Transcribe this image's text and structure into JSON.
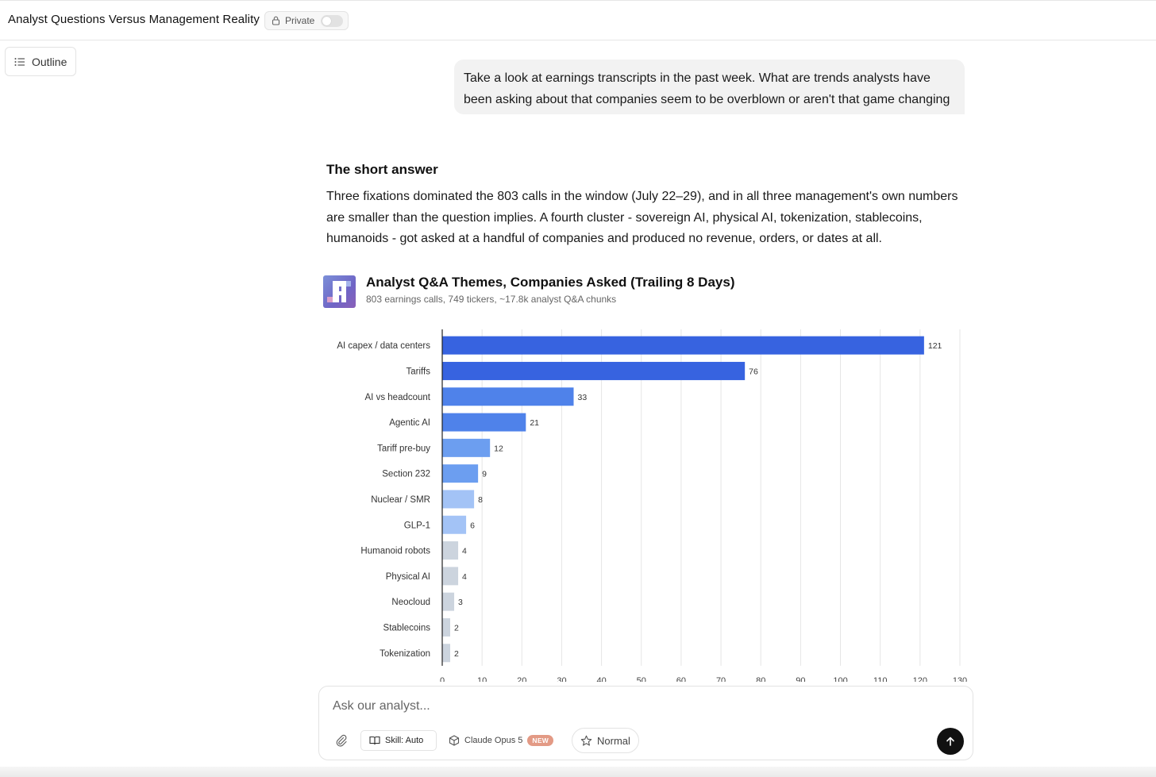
{
  "header": {
    "title": "Analyst Questions Versus Management Reality",
    "private_label": "Private"
  },
  "sidebar": {
    "outline_label": "Outline"
  },
  "conversation": {
    "user_message": "Take a look at earnings transcripts in the past week. What are trends analysts have been asking about that companies seem to be overblown or aren't that game changing",
    "answer_heading": "The short answer",
    "answer_body": "Three fixations dominated the 803 calls in the window (July 22–29), and in all three management's own numbers are smaller than the question implies. A fourth cluster - sovereign AI, physical AI, tokenization, stablecoins, humanoids - got asked at a handful of companies and produced no revenue, orders, or dates at all."
  },
  "chart_data": {
    "type": "bar",
    "orientation": "horizontal",
    "title": "Analyst Q&A Themes, Companies Asked (Trailing 8 Days)",
    "subtitle": "803 earnings calls, 749 tickers, ~17.8k analyst Q&A chunks",
    "categories": [
      "AI capex / data centers",
      "Tariffs",
      "AI vs headcount",
      "Agentic AI",
      "Tariff pre-buy",
      "Section 232",
      "Nuclear / SMR",
      "GLP-1",
      "Humanoid robots",
      "Physical AI",
      "Neocloud",
      "Stablecoins",
      "Tokenization"
    ],
    "values": [
      121,
      76,
      33,
      21,
      12,
      9,
      8,
      6,
      4,
      4,
      3,
      2,
      2
    ],
    "colors": [
      "#3763e0",
      "#3763e0",
      "#4f82ea",
      "#4f82ea",
      "#6c9ef0",
      "#6c9ef0",
      "#a3c3f6",
      "#a3c3f6",
      "#ccd4de",
      "#ccd4de",
      "#ccd4de",
      "#ccd4de",
      "#ccd4de"
    ],
    "xlim": [
      0,
      130
    ],
    "xticks": [
      0,
      10,
      20,
      30,
      40,
      50,
      60,
      70,
      80,
      90,
      100,
      110,
      120,
      130
    ],
    "grid": true
  },
  "composer": {
    "placeholder": "Ask our analyst...",
    "skill_label": "Skill: Auto",
    "model_label": "Claude Opus 5",
    "new_badge": "NEW",
    "mode_label": "Normal"
  }
}
